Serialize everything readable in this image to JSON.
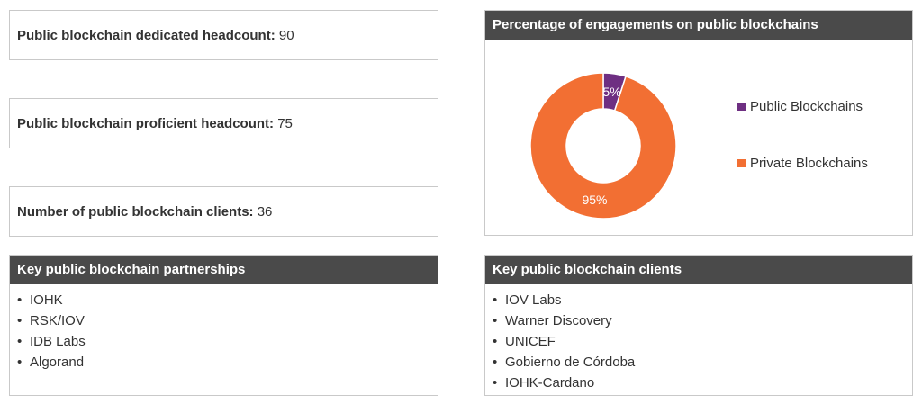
{
  "stats": [
    {
      "label": "Public blockchain dedicated headcount:",
      "value": "90"
    },
    {
      "label": "Public blockchain proficient headcount:",
      "value": "75"
    },
    {
      "label": "Number of public blockchain clients:",
      "value": "36"
    }
  ],
  "partnerships": {
    "title": "Key public blockchain partnerships",
    "items": [
      "IOHK",
      "RSK/IOV",
      "IDB Labs",
      "Algorand"
    ]
  },
  "clients": {
    "title": "Key public blockchain clients",
    "items": [
      "IOV Labs",
      "Warner Discovery",
      "UNICEF",
      "Gobierno de Córdoba",
      "IOHK-Cardano"
    ]
  },
  "bullet": "•",
  "chart_data": {
    "type": "pie",
    "title": "Percentage of engagements on public blockchains",
    "donut": true,
    "legend_position": "right",
    "series": [
      {
        "name": "Public Blockchains",
        "value": 5,
        "label": "5%",
        "color": "#6e2f82"
      },
      {
        "name": "Private Blockchains",
        "value": 95,
        "label": "95%",
        "color": "#f26f33"
      }
    ]
  }
}
